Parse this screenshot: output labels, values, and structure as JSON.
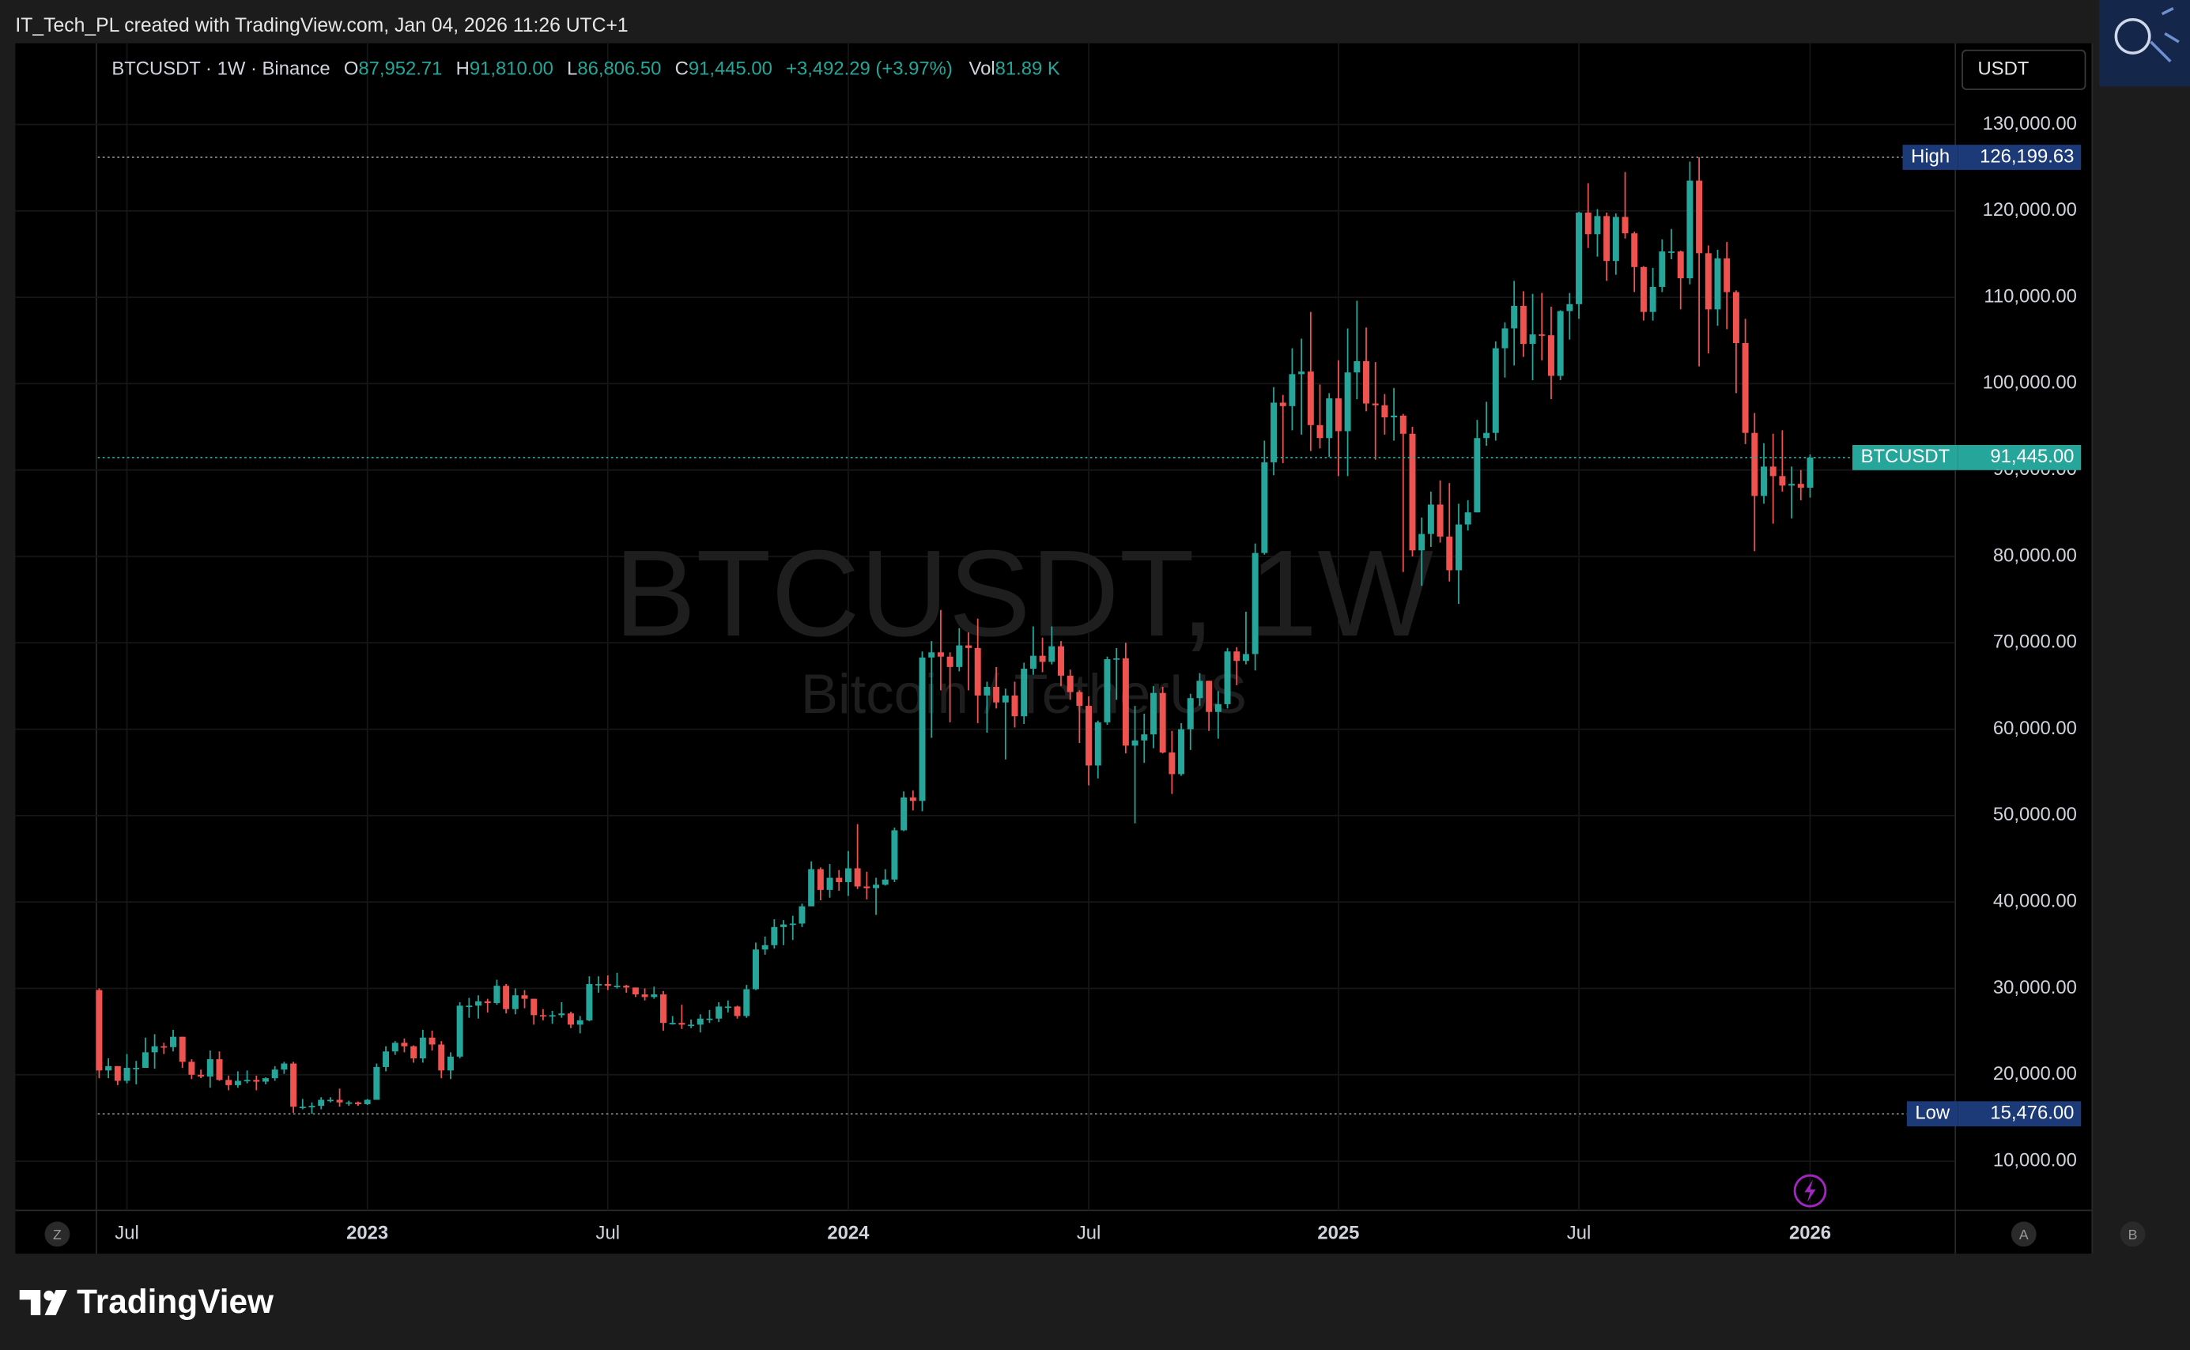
{
  "header": {
    "attribution": "IT_Tech_PL created with TradingView.com, Jan 04, 2026 11:26 UTC+1",
    "brand": "TradingView"
  },
  "ui": {
    "left_button": "Z",
    "auto_button": "A",
    "right_button": "B"
  },
  "chart_data": {
    "type": "candlestick",
    "legend": {
      "symbol": "BTCUSDT · 1W · Binance",
      "open_label": "O",
      "open": "87,952.71",
      "high_label": "H",
      "high": "91,810.00",
      "low_label": "L",
      "low": "86,806.50",
      "close_label": "C",
      "close": "91,445.00",
      "change": "+3,492.29 (+3.97%)",
      "volume_label": "Vol",
      "volume": "81.89 K"
    },
    "watermark": {
      "title": "BTCUSDT, 1W",
      "subtitle": "Bitcoin / TetherUS"
    },
    "currency": "USDT",
    "categories": [
      null,
      null,
      null,
      "Jul",
      null,
      null,
      null,
      null,
      null,
      null,
      null,
      null,
      null,
      null,
      null,
      null,
      null,
      null,
      null,
      null,
      null,
      null,
      null,
      null,
      null,
      null,
      null,
      null,
      null,
      "2023",
      null,
      null,
      null,
      null,
      null,
      null,
      null,
      null,
      null,
      null,
      null,
      null,
      null,
      null,
      null,
      null,
      null,
      null,
      null,
      null,
      null,
      null,
      null,
      null,
      null,
      "Jul",
      null,
      null,
      null,
      null,
      null,
      null,
      null,
      null,
      null,
      null,
      null,
      null,
      null,
      null,
      null,
      null,
      null,
      null,
      null,
      null,
      null,
      null,
      null,
      null,
      null,
      "2024",
      null,
      null,
      null,
      null,
      null,
      null,
      null,
      null,
      null,
      null,
      null,
      null,
      null,
      null,
      null,
      null,
      null,
      null,
      null,
      null,
      null,
      null,
      null,
      null,
      null,
      "Jul",
      null,
      null,
      null,
      null,
      null,
      null,
      null,
      null,
      null,
      null,
      null,
      null,
      null,
      null,
      null,
      null,
      null,
      null,
      null,
      null,
      null,
      null,
      null,
      null,
      null,
      null,
      "2025",
      null,
      null,
      null,
      null,
      null,
      null,
      null,
      null,
      null,
      null,
      null,
      null,
      null,
      null,
      null,
      null,
      null,
      null,
      null,
      null,
      null,
      null,
      null,
      null,
      null,
      "Jul",
      null,
      null,
      null,
      null,
      null,
      null,
      null,
      null,
      null,
      null,
      null,
      null,
      null,
      null,
      null,
      null,
      null,
      null,
      null,
      null,
      null,
      null,
      null,
      null,
      "2026"
    ],
    "open": [
      29800,
      20500,
      21000,
      19300,
      20800,
      20800,
      22600,
      23300,
      23200,
      24400,
      21500,
      20000,
      19800,
      21800,
      19400,
      18800,
      19300,
      19400,
      19200,
      19600,
      20600,
      21300,
      16300,
      16300,
      16400,
      17100,
      17100,
      16800,
      16800,
      16600,
      17100,
      20900,
      22700,
      23700,
      23300,
      21900,
      24300,
      23500,
      20500,
      22100,
      28000,
      28000,
      28500,
      28300,
      30300,
      27600,
      29200,
      28800,
      26900,
      26800,
      26900,
      27100,
      25800,
      26300,
      30500,
      30500,
      30300,
      30300,
      30100,
      29300,
      29000,
      29300,
      26000,
      26000,
      25800,
      25800,
      26500,
      26500,
      27900,
      27900,
      26800,
      29900,
      34500,
      35000,
      37100,
      37400,
      37500,
      39500,
      43800,
      41400,
      42800,
      42300,
      43900,
      41800,
      41600,
      42000,
      42600,
      48300,
      52100,
      51700,
      68300,
      68900,
      68400,
      67200,
      69700,
      69400,
      63900,
      64900,
      63100,
      63900,
      61500,
      67000,
      68500,
      67800,
      69600,
      66200,
      64300,
      62700,
      55800,
      60800,
      68100,
      68200,
      58100,
      58700,
      59400,
      64200,
      57300,
      54800,
      60000,
      63600,
      65600,
      62000,
      62900,
      69000,
      67900,
      68700,
      80400,
      90900,
      97800,
      97400,
      101100,
      101400,
      95200,
      93700,
      98300,
      94500,
      101300,
      102600,
      97700,
      97500,
      96100,
      96300,
      94200,
      80700,
      82600,
      86000,
      82300,
      78400,
      83700,
      85100,
      93700,
      94300,
      104100,
      106400,
      109000,
      104600,
      105700,
      105600,
      100900,
      108400,
      109200,
      119800,
      117300,
      119400,
      114200,
      119300,
      117400,
      113500,
      108300,
      111200,
      115300,
      115300,
      112200,
      123500,
      115100,
      108600,
      114500,
      110600,
      104700,
      94300,
      87000,
      90400,
      89300,
      88200,
      88400,
      87952.71
    ],
    "high": [
      30000,
      21900,
      21000,
      22400,
      21600,
      24300,
      24700,
      23700,
      25200,
      24400,
      21800,
      20600,
      22800,
      22700,
      19900,
      20400,
      20500,
      19900,
      19700,
      21000,
      21500,
      21500,
      17200,
      16800,
      17400,
      17400,
      18400,
      17000,
      16900,
      17200,
      21300,
      23300,
      23900,
      24200,
      23400,
      25200,
      25100,
      23900,
      22600,
      28400,
      28900,
      29200,
      28800,
      31000,
      30500,
      30000,
      29800,
      28800,
      27600,
      27400,
      28400,
      27300,
      26800,
      31400,
      31400,
      31500,
      31800,
      30400,
      30100,
      30000,
      30200,
      29700,
      26800,
      28100,
      26400,
      27000,
      27500,
      28400,
      28600,
      28000,
      30400,
      35300,
      36000,
      38000,
      37900,
      38400,
      39800,
      44700,
      44000,
      44400,
      43700,
      45900,
      49000,
      43500,
      42800,
      43800,
      48600,
      52800,
      52900,
      69000,
      70200,
      73800,
      68900,
      71700,
      71200,
      72800,
      65500,
      67200,
      64700,
      65500,
      67700,
      71900,
      70600,
      71900,
      70200,
      66900,
      64500,
      63800,
      61000,
      68400,
      69400,
      70000,
      62700,
      61800,
      65000,
      64900,
      59800,
      60700,
      64100,
      66500,
      65600,
      64400,
      69400,
      69500,
      73600,
      81500,
      93400,
      99600,
      98700,
      104100,
      105200,
      108300,
      99900,
      98900,
      102700,
      106400,
      109600,
      106500,
      102500,
      98800,
      99500,
      96500,
      95000,
      84500,
      87500,
      88800,
      88500,
      86100,
      86500,
      95800,
      97900,
      104900,
      107100,
      111900,
      110700,
      110400,
      110500,
      108900,
      108500,
      110500,
      119900,
      123200,
      120200,
      119800,
      119700,
      124500,
      117600,
      113600,
      113400,
      116700,
      117900,
      115400,
      125700,
      126199.63,
      116000,
      115500,
      116400,
      110800,
      107500,
      96600,
      93100,
      94200,
      94600,
      90400,
      90000,
      91810
    ],
    "low": [
      19600,
      19600,
      18800,
      19000,
      18900,
      20800,
      20700,
      22400,
      22700,
      20800,
      19500,
      19600,
      18500,
      19300,
      18200,
      18500,
      19000,
      18200,
      18900,
      19300,
      20100,
      15600,
      16000,
      15476,
      16000,
      16800,
      16300,
      16400,
      16400,
      16500,
      17100,
      20400,
      22300,
      22600,
      21400,
      21400,
      22800,
      19600,
      19500,
      21900,
      26600,
      26500,
      27200,
      28100,
      27100,
      27000,
      27700,
      25800,
      26300,
      25900,
      26600,
      25400,
      24800,
      26200,
      29500,
      29800,
      30000,
      29500,
      29000,
      28600,
      28800,
      25100,
      25800,
      25300,
      25400,
      24900,
      26000,
      26100,
      27200,
      26500,
      26600,
      29800,
      33900,
      34600,
      35000,
      35600,
      37100,
      39500,
      40200,
      40500,
      41300,
      40700,
      41500,
      40300,
      38500,
      41900,
      42300,
      48200,
      50600,
      50500,
      59000,
      64500,
      60800,
      66700,
      64500,
      60700,
      59600,
      62400,
      56500,
      60200,
      60600,
      66300,
      66600,
      67500,
      65000,
      63400,
      58400,
      53500,
      54300,
      60500,
      63400,
      57200,
      49100,
      56100,
      57800,
      57200,
      52500,
      54600,
      57600,
      62700,
      59800,
      58900,
      62400,
      65100,
      67500,
      66800,
      80200,
      89400,
      90800,
      94600,
      94100,
      92200,
      92500,
      91500,
      89300,
      89300,
      98200,
      96800,
      91200,
      94100,
      93400,
      78200,
      80000,
      76600,
      81100,
      81600,
      77100,
      74500,
      83000,
      85100,
      92800,
      93400,
      100700,
      102100,
      103100,
      100400,
      102700,
      98200,
      100400,
      105100,
      107500,
      115700,
      114700,
      111900,
      112600,
      116800,
      110600,
      107300,
      107300,
      110600,
      114400,
      108600,
      111500,
      102000,
      103500,
      106700,
      106300,
      98900,
      93000,
      80600,
      86100,
      83800,
      87500,
      84400,
      86500,
      86806.5
    ],
    "close": [
      20500,
      21000,
      19300,
      20800,
      20800,
      22600,
      23300,
      23200,
      24400,
      21500,
      20000,
      19800,
      21800,
      19400,
      18800,
      19300,
      19400,
      19200,
      19600,
      20600,
      21300,
      16300,
      16300,
      16400,
      17100,
      17100,
      16800,
      16800,
      16600,
      17100,
      20900,
      22700,
      23700,
      23300,
      21900,
      24300,
      23500,
      20500,
      22100,
      28000,
      28000,
      28500,
      28300,
      30300,
      27600,
      29200,
      28800,
      26900,
      26800,
      26900,
      27100,
      25800,
      26300,
      30500,
      30500,
      30300,
      30300,
      30100,
      29300,
      29000,
      29300,
      26000,
      26000,
      25800,
      25800,
      26500,
      26500,
      27900,
      27900,
      26800,
      29900,
      34500,
      35000,
      37100,
      37400,
      37500,
      39500,
      43800,
      41400,
      42800,
      42300,
      43900,
      41800,
      41600,
      42000,
      42600,
      48300,
      52100,
      51700,
      68300,
      68900,
      68400,
      67200,
      69700,
      69400,
      63900,
      64900,
      63100,
      63900,
      61500,
      67000,
      68500,
      67800,
      69600,
      66200,
      64300,
      62700,
      55800,
      60800,
      68100,
      68200,
      58100,
      58700,
      59400,
      64200,
      57300,
      54800,
      60000,
      63600,
      65600,
      62000,
      62900,
      69000,
      67900,
      68700,
      80400,
      90900,
      97800,
      97400,
      101100,
      101400,
      95200,
      93700,
      98300,
      94500,
      101300,
      102600,
      97700,
      97500,
      96100,
      96300,
      94200,
      80700,
      82600,
      86000,
      82300,
      78400,
      83700,
      85100,
      93700,
      94300,
      104100,
      106400,
      109000,
      104600,
      105700,
      105600,
      100900,
      108400,
      109200,
      119800,
      117300,
      119400,
      114200,
      119300,
      117400,
      113500,
      108300,
      111200,
      115300,
      115300,
      112200,
      123500,
      115100,
      108600,
      114500,
      110600,
      104700,
      94300,
      87000,
      90400,
      89300,
      88200,
      88400,
      87952.71,
      91445
    ],
    "up_color": "#26a69a",
    "down_color": "#ef5350",
    "ylim": [
      4300,
      139400
    ],
    "yticks": [
      {
        "value": 10000,
        "label": "10,000.00"
      },
      {
        "value": 20000,
        "label": "20,000.00"
      },
      {
        "value": 30000,
        "label": "30,000.00"
      },
      {
        "value": 40000,
        "label": "40,000.00"
      },
      {
        "value": 50000,
        "label": "50,000.00"
      },
      {
        "value": 60000,
        "label": "60,000.00"
      },
      {
        "value": 70000,
        "label": "70,000.00"
      },
      {
        "value": 80000,
        "label": "80,000.00"
      },
      {
        "value": 90000,
        "label": "90,000.00"
      },
      {
        "value": 100000,
        "label": "100,000.00"
      },
      {
        "value": 110000,
        "label": "110,000.00"
      },
      {
        "value": 120000,
        "label": "120,000.00"
      },
      {
        "value": 130000,
        "label": "130,000.00"
      }
    ],
    "grid": true,
    "price_lines": [
      {
        "label": "High",
        "value": 126199.63,
        "value_label": "126,199.63",
        "color": "#1c3a78",
        "line_color": "#8a8a8a"
      },
      {
        "label": "Low",
        "value": 15476,
        "value_label": "15,476.00",
        "color": "#1c3a78",
        "line_color": "#8a8a8a"
      },
      {
        "label": "BTCUSDT",
        "value": 91445,
        "value_label": "91,445.00",
        "color": "#26a69a",
        "line_color": "#26a69a"
      }
    ]
  }
}
